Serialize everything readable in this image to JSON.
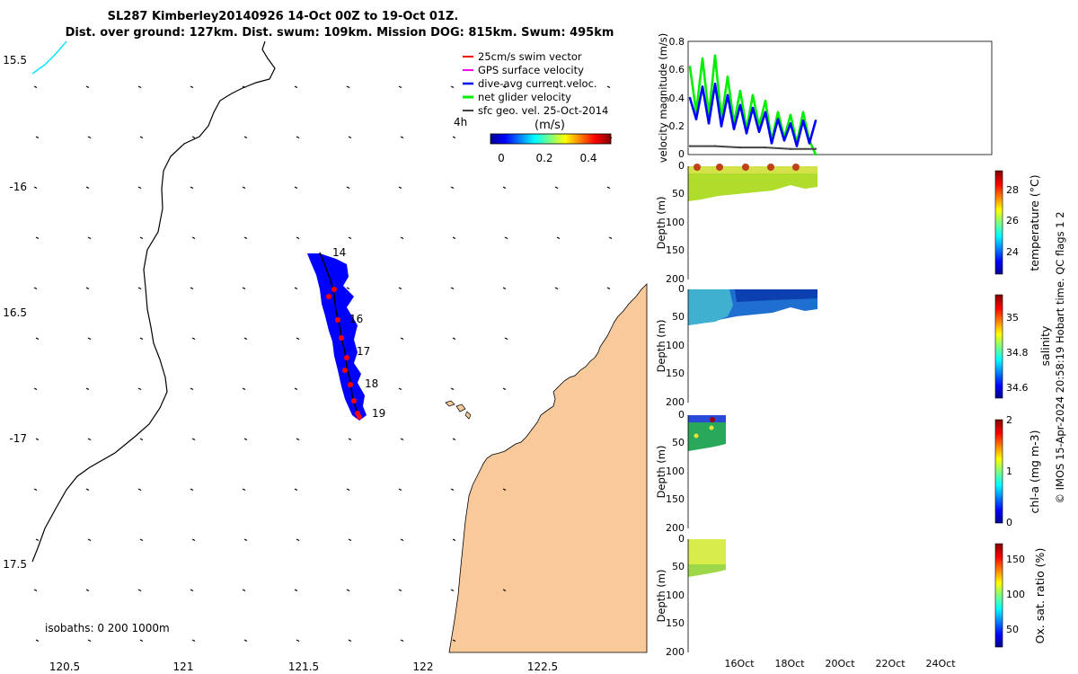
{
  "header": {
    "title_line1": "SL287 Kimberley20140926 14-Oct 00Z to 19-Oct 01Z.",
    "title_line2": "Dist. over ground: 127km. Dist. swum: 109km. Mission DOG: 815km. Swum: 495km"
  },
  "map": {
    "ylabels": [
      "15.5",
      "-16",
      "16.5",
      "-17",
      "17.5"
    ],
    "xlabels": [
      "120.5",
      "121",
      "121.5",
      "122",
      "122.5"
    ],
    "isobath_note": "isobaths: 0   200  1000m",
    "time_label": "4h",
    "colorbar": {
      "title": "(m/s)",
      "ticks": [
        "0",
        "0.2",
        "0.4"
      ]
    },
    "legend": [
      {
        "label": "25cm/s swim vector",
        "color": "#ff0000"
      },
      {
        "label": "GPS surface velocity",
        "color": "#ff00ff"
      },
      {
        "label": "dive-avg current.veloc.",
        "color": "#0000ff"
      },
      {
        "label": "net glider velocity",
        "color": "#00ee00"
      },
      {
        "label": "sfc geo. vel. 25-Oct-2014",
        "color": "#000000"
      }
    ],
    "day_labels": [
      "14",
      "16",
      "17",
      "18",
      "19"
    ],
    "colors": {
      "land": "#f8c99a",
      "track_fill": "#0000ff",
      "track_dots": "#ff0000"
    }
  },
  "panels": {
    "velocity": {
      "ylabel": "velocity magnitude (m/s)",
      "yticks": [
        "0",
        "0.2",
        "0.4",
        "0.6",
        "0.8"
      ]
    },
    "depth_ylabel": "Depth (m)",
    "depth_ticks": [
      "0",
      "50",
      "100",
      "150",
      "200"
    ],
    "xticks": [
      "16Oct",
      "18Oct",
      "20Oct",
      "22Oct",
      "24Oct"
    ],
    "temperature": {
      "label": "temperature (°C)",
      "ticks": [
        "28",
        "26",
        "24"
      ]
    },
    "salinity": {
      "label": "salinity",
      "ticks": [
        "35",
        "34.8",
        "34.6"
      ]
    },
    "chla": {
      "label": "chl-a (mg m-3)",
      "ticks": [
        "2",
        "1",
        "0"
      ]
    },
    "oxygen": {
      "label": "Ox. sat. ratio (%)",
      "ticks": [
        "150",
        "100",
        "50"
      ]
    }
  },
  "footer": {
    "credit": "© IMOS 15-Apr-2024 20:58:19 Hobart time. QC flags 1  2"
  },
  "chart_data": [
    {
      "type": "line",
      "title": "velocity magnitude (m/s)",
      "ylabel": "velocity magnitude (m/s)",
      "ylim": [
        0,
        0.8
      ],
      "x_units": "days since 14-Oct-2014 (axis ticks 16Oct..24Oct)",
      "series": [
        {
          "name": "net glider velocity",
          "color": "#00ee00",
          "x": [
            0.0,
            0.25,
            0.5,
            0.75,
            1.0,
            1.25,
            1.5,
            1.75,
            2.0,
            2.25,
            2.5,
            2.75,
            3.0,
            3.25,
            3.5,
            3.75,
            4.0,
            4.25,
            4.5,
            4.75,
            5.0
          ],
          "values": [
            0.62,
            0.3,
            0.68,
            0.28,
            0.7,
            0.25,
            0.55,
            0.22,
            0.45,
            0.18,
            0.42,
            0.2,
            0.38,
            0.1,
            0.3,
            0.12,
            0.28,
            0.08,
            0.3,
            0.1,
            0.0
          ]
        },
        {
          "name": "dive-avg current.veloc.",
          "color": "#0000ff",
          "x": [
            0.0,
            0.25,
            0.5,
            0.75,
            1.0,
            1.25,
            1.5,
            1.75,
            2.0,
            2.25,
            2.5,
            2.75,
            3.0,
            3.25,
            3.5,
            3.75,
            4.0,
            4.25,
            4.5,
            4.75,
            5.0
          ],
          "values": [
            0.4,
            0.25,
            0.48,
            0.22,
            0.5,
            0.2,
            0.42,
            0.18,
            0.35,
            0.15,
            0.33,
            0.16,
            0.3,
            0.08,
            0.25,
            0.1,
            0.22,
            0.06,
            0.24,
            0.08,
            0.24
          ]
        },
        {
          "name": "",
          "color": "#444444",
          "x": [
            0.0,
            1.0,
            2.0,
            3.0,
            4.0,
            5.0
          ],
          "values": [
            0.06,
            0.06,
            0.05,
            0.05,
            0.04,
            0.04
          ]
        }
      ]
    }
  ]
}
